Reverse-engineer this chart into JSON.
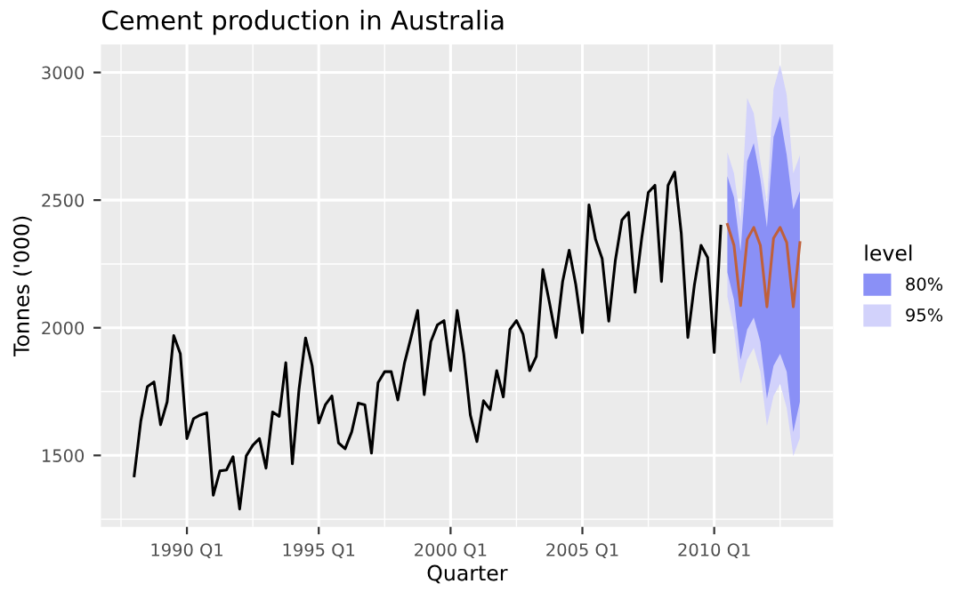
{
  "chart_data": {
    "type": "line",
    "title": "Cement production in Australia",
    "xlabel": "Quarter",
    "ylabel": "Tonnes ('000)",
    "legend_title": "level",
    "legend": "right",
    "grid": true,
    "categories": [
      null,
      null,
      null,
      null,
      null,
      null,
      null,
      null,
      "1990 Q1",
      null,
      null,
      null,
      null,
      null,
      null,
      null,
      null,
      null,
      null,
      null,
      null,
      null,
      null,
      null,
      null,
      null,
      null,
      null,
      "1995 Q1",
      null,
      null,
      null,
      null,
      null,
      null,
      null,
      null,
      null,
      null,
      null,
      null,
      null,
      null,
      null,
      null,
      null,
      null,
      null,
      "2000 Q1",
      null,
      null,
      null,
      null,
      null,
      null,
      null,
      null,
      null,
      null,
      null,
      null,
      null,
      null,
      null,
      null,
      null,
      null,
      null,
      "2005 Q1",
      null,
      null,
      null,
      null,
      null,
      null,
      null,
      null,
      null,
      null,
      null,
      null,
      null,
      null,
      null,
      null,
      null,
      null,
      null,
      "2010 Q1",
      null,
      null,
      null,
      null,
      null,
      null,
      null,
      null,
      null,
      null,
      null,
      null,
      null
    ],
    "ylim": [
      1220,
      3110
    ],
    "yticks": [
      1500,
      2000,
      2500,
      3000
    ],
    "series": [
      {
        "color": "#000000",
        "values": [
          1420,
          1634,
          1769,
          1788,
          1620,
          1710,
          1969,
          1898,
          1566,
          1644,
          1658,
          1667,
          1344,
          1439,
          1443,
          1495,
          1290,
          1498,
          1540,
          1566,
          1450,
          1670,
          1653,
          1863,
          1467,
          1757,
          1960,
          1851,
          1627,
          1698,
          1733,
          1549,
          1526,
          1592,
          1705,
          1698,
          1509,
          1785,
          1828,
          1828,
          1717,
          1861,
          1962,
          2068,
          1738,
          1945,
          2011,
          2028,
          1832,
          2068,
          1898,
          1658,
          1554,
          1714,
          1679,
          1832,
          1729,
          1993,
          2028,
          1974,
          1832,
          1887,
          2228,
          2099,
          1962,
          2181,
          2304,
          2169,
          1981,
          2481,
          2346,
          2271,
          2026,
          2264,
          2422,
          2452,
          2139,
          2351,
          2530,
          2558,
          2181,
          2558,
          2610,
          2370,
          1962,
          2169,
          2323,
          2275,
          1903,
          2398,
          null,
          null,
          null,
          null,
          null,
          null,
          null,
          null,
          null,
          null,
          null,
          null
        ]
      },
      {
        "type": "area",
        "name": "95%",
        "color": "#d2d2fb",
        "values": [
          null,
          null,
          null,
          null,
          null,
          null,
          null,
          null,
          null,
          null,
          null,
          null,
          null,
          null,
          null,
          null,
          null,
          null,
          null,
          null,
          null,
          null,
          null,
          null,
          null,
          null,
          null,
          null,
          null,
          null,
          null,
          null,
          null,
          null,
          null,
          null,
          null,
          null,
          null,
          null,
          null,
          null,
          null,
          null,
          null,
          null,
          null,
          null,
          null,
          null,
          null,
          null,
          null,
          null,
          null,
          null,
          null,
          null,
          null,
          null,
          null,
          null,
          null,
          null,
          null,
          null,
          null,
          null,
          null,
          null,
          null,
          null,
          null,
          null,
          null,
          null,
          null,
          null,
          null,
          null,
          null,
          null,
          null,
          null,
          null,
          null,
          null,
          null,
          null,
          null,
          null,
          null,
          null,
          null,
          null,
          null,
          null,
          null,
          null,
          null,
          null,
          null
        ],
        "upper": [
          null,
          null,
          null,
          null,
          null,
          null,
          null,
          null,
          null,
          null,
          null,
          null,
          null,
          null,
          null,
          null,
          null,
          null,
          null,
          null,
          null,
          null,
          null,
          null,
          null,
          null,
          null,
          null,
          null,
          null,
          null,
          null,
          null,
          null,
          null,
          null,
          null,
          null,
          null,
          null,
          null,
          null,
          null,
          null,
          null,
          null,
          null,
          null,
          null,
          null,
          null,
          null,
          null,
          null,
          null,
          null,
          null,
          null,
          null,
          null,
          null,
          null,
          null,
          null,
          null,
          null,
          null,
          null,
          null,
          null,
          null,
          null,
          null,
          null,
          null,
          null,
          null,
          null,
          null,
          null,
          null,
          null,
          null,
          null,
          null,
          null,
          null,
          null,
          null,
          null,
          2688,
          2605,
          2417,
          2900,
          2841,
          2653,
          2488,
          2935,
          3030,
          2912,
          2605,
          2676
        ],
        "lower": [
          null,
          null,
          null,
          null,
          null,
          null,
          null,
          null,
          null,
          null,
          null,
          null,
          null,
          null,
          null,
          null,
          null,
          null,
          null,
          null,
          null,
          null,
          null,
          null,
          null,
          null,
          null,
          null,
          null,
          null,
          null,
          null,
          null,
          null,
          null,
          null,
          null,
          null,
          null,
          null,
          null,
          null,
          null,
          null,
          null,
          null,
          null,
          null,
          null,
          null,
          null,
          null,
          null,
          null,
          null,
          null,
          null,
          null,
          null,
          null,
          null,
          null,
          null,
          null,
          null,
          null,
          null,
          null,
          null,
          null,
          null,
          null,
          null,
          null,
          null,
          null,
          null,
          null,
          null,
          null,
          null,
          null,
          null,
          null,
          null,
          null,
          null,
          null,
          null,
          null,
          2122,
          1993,
          1780,
          1875,
          1922,
          1828,
          1615,
          1733,
          1780,
          1686,
          1498,
          1568
        ]
      },
      {
        "type": "area",
        "name": "80%",
        "color": "#8a90f6",
        "values": [
          null,
          null,
          null,
          null,
          null,
          null,
          null,
          null,
          null,
          null,
          null,
          null,
          null,
          null,
          null,
          null,
          null,
          null,
          null,
          null,
          null,
          null,
          null,
          null,
          null,
          null,
          null,
          null,
          null,
          null,
          null,
          null,
          null,
          null,
          null,
          null,
          null,
          null,
          null,
          null,
          null,
          null,
          null,
          null,
          null,
          null,
          null,
          null,
          null,
          null,
          null,
          null,
          null,
          null,
          null,
          null,
          null,
          null,
          null,
          null,
          null,
          null,
          null,
          null,
          null,
          null,
          null,
          null,
          null,
          null,
          null,
          null,
          null,
          null,
          null,
          null,
          null,
          null,
          null,
          null,
          null,
          null,
          null,
          null,
          null,
          null,
          null,
          null,
          null,
          null,
          null,
          null,
          null,
          null,
          null,
          null,
          null,
          null,
          null,
          null,
          null,
          null
        ],
        "upper": [
          null,
          null,
          null,
          null,
          null,
          null,
          null,
          null,
          null,
          null,
          null,
          null,
          null,
          null,
          null,
          null,
          null,
          null,
          null,
          null,
          null,
          null,
          null,
          null,
          null,
          null,
          null,
          null,
          null,
          null,
          null,
          null,
          null,
          null,
          null,
          null,
          null,
          null,
          null,
          null,
          null,
          null,
          null,
          null,
          null,
          null,
          null,
          null,
          null,
          null,
          null,
          null,
          null,
          null,
          null,
          null,
          null,
          null,
          null,
          null,
          null,
          null,
          null,
          null,
          null,
          null,
          null,
          null,
          null,
          null,
          null,
          null,
          null,
          null,
          null,
          null,
          null,
          null,
          null,
          null,
          null,
          null,
          null,
          null,
          null,
          null,
          null,
          null,
          null,
          null,
          2594,
          2511,
          2299,
          2653,
          2723,
          2582,
          2393,
          2747,
          2829,
          2676,
          2464,
          2535
        ],
        "lower": [
          null,
          null,
          null,
          null,
          null,
          null,
          null,
          null,
          null,
          null,
          null,
          null,
          null,
          null,
          null,
          null,
          null,
          null,
          null,
          null,
          null,
          null,
          null,
          null,
          null,
          null,
          null,
          null,
          null,
          null,
          null,
          null,
          null,
          null,
          null,
          null,
          null,
          null,
          null,
          null,
          null,
          null,
          null,
          null,
          null,
          null,
          null,
          null,
          null,
          null,
          null,
          null,
          null,
          null,
          null,
          null,
          null,
          null,
          null,
          null,
          null,
          null,
          null,
          null,
          null,
          null,
          null,
          null,
          null,
          null,
          null,
          null,
          null,
          null,
          null,
          null,
          null,
          null,
          null,
          null,
          null,
          null,
          null,
          null,
          null,
          null,
          null,
          null,
          null,
          null,
          2217,
          2110,
          1875,
          1993,
          2040,
          1945,
          1722,
          1851,
          1898,
          1828,
          1592,
          1710
        ]
      },
      {
        "color": "#c0603a",
        "values": [
          null,
          null,
          null,
          null,
          null,
          null,
          null,
          null,
          null,
          null,
          null,
          null,
          null,
          null,
          null,
          null,
          null,
          null,
          null,
          null,
          null,
          null,
          null,
          null,
          null,
          null,
          null,
          null,
          null,
          null,
          null,
          null,
          null,
          null,
          null,
          null,
          null,
          null,
          null,
          null,
          null,
          null,
          null,
          null,
          null,
          null,
          null,
          null,
          null,
          null,
          null,
          null,
          null,
          null,
          null,
          null,
          null,
          null,
          null,
          null,
          null,
          null,
          null,
          null,
          null,
          null,
          null,
          null,
          null,
          null,
          null,
          null,
          null,
          null,
          null,
          null,
          null,
          null,
          null,
          null,
          null,
          null,
          null,
          null,
          null,
          null,
          null,
          null,
          null,
          null,
          2405,
          2323,
          2087,
          2346,
          2393,
          2323,
          2082,
          2351,
          2393,
          2334,
          2082,
          2334
        ]
      }
    ]
  }
}
